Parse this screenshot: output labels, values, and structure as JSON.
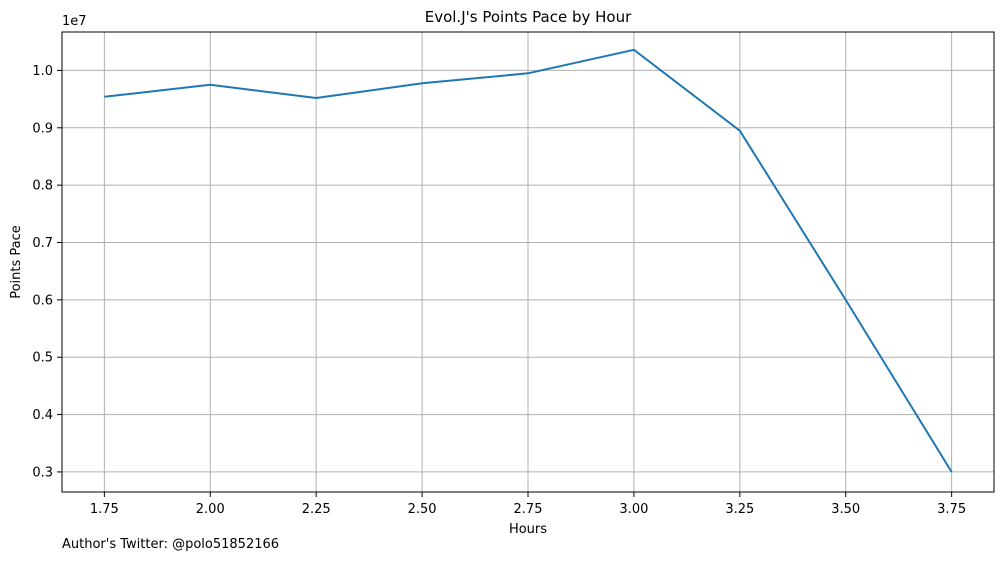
{
  "chart_data": {
    "type": "line",
    "title": "Evol.J's Points Pace by Hour",
    "xlabel": "Hours",
    "ylabel": "Points Pace",
    "y_offset_label": "1e7",
    "x": [
      1.75,
      2.0,
      2.25,
      2.5,
      2.75,
      3.0,
      3.25,
      3.5,
      3.75
    ],
    "series": [
      {
        "values": [
          9540000,
          9750000,
          9520000,
          9775000,
          9950000,
          10360000,
          8950000,
          6000000,
          3000000
        ]
      }
    ],
    "xlim": [
      1.65,
      3.85
    ],
    "ylim": [
      2.65,
      10.67
    ],
    "y_scale_factor": 10000000,
    "x_ticks": [
      "1.75",
      "2.00",
      "2.25",
      "2.50",
      "2.75",
      "3.00",
      "3.25",
      "3.50",
      "3.75"
    ],
    "x_tick_values": [
      1.75,
      2.0,
      2.25,
      2.5,
      2.75,
      3.0,
      3.25,
      3.5,
      3.75
    ],
    "y_ticks": [
      "0.3",
      "0.4",
      "0.5",
      "0.6",
      "0.7",
      "0.8",
      "0.9",
      "1.0"
    ],
    "y_tick_values": [
      3,
      4,
      5,
      6,
      7,
      8,
      9,
      10
    ],
    "grid": true,
    "line_color": "#1f77b4",
    "grid_color": "#b0b0b0"
  },
  "footer": "Author's Twitter: @polo51852166"
}
